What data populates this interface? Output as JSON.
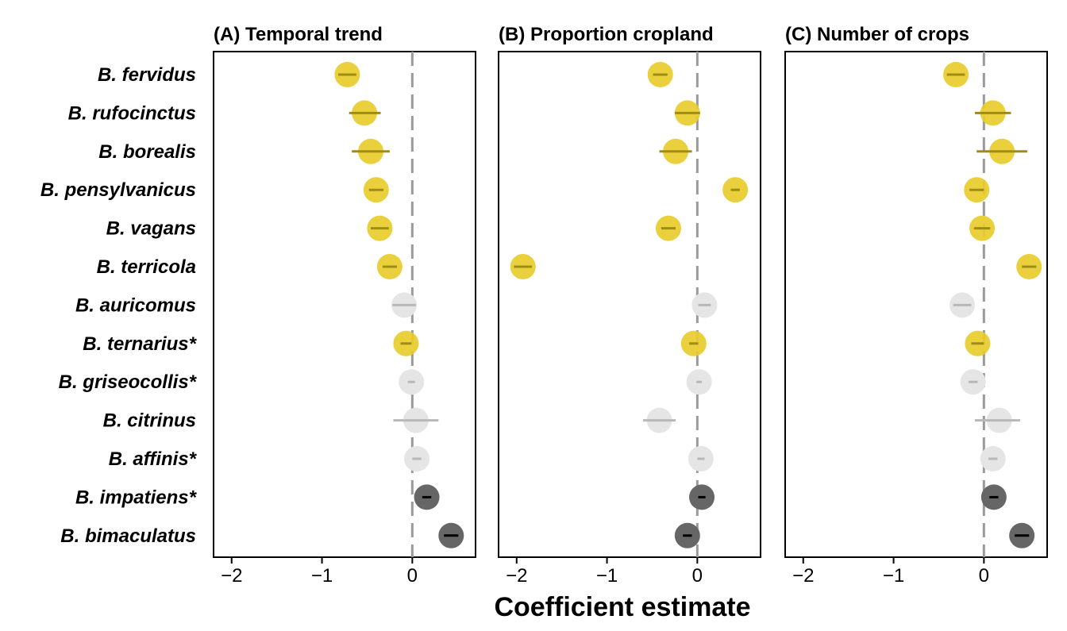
{
  "chart_data": {
    "type": "scatter",
    "xlabel": "Coefficient estimate",
    "xlim": [
      -2.2,
      0.7
    ],
    "xticks": [
      -2,
      -1,
      0
    ],
    "tick_labels": [
      "−2",
      "−1",
      "0"
    ],
    "reference_line": 0,
    "colors": {
      "significant_negative": "#e8cc2c",
      "not_significant": "#e5e5e5",
      "significant_positive": "#666666"
    },
    "species": [
      "B. fervidus",
      "B. rufocinctus",
      "B. borealis",
      "B. pensylvanicus",
      "B. vagans",
      "B. terricola",
      "B. auricomus",
      "B. ternarius*",
      "B. griseocollis*",
      "B. citrinus",
      "B. affinis*",
      "B. impatiens*",
      "B. bimaculatus"
    ],
    "panels": [
      {
        "title": "(A) Temporal trend",
        "points": [
          {
            "est": -0.72,
            "lo": -0.82,
            "hi": -0.62,
            "class": "significant_negative"
          },
          {
            "est": -0.53,
            "lo": -0.7,
            "hi": -0.35,
            "class": "significant_negative"
          },
          {
            "est": -0.46,
            "lo": -0.67,
            "hi": -0.25,
            "class": "significant_negative"
          },
          {
            "est": -0.4,
            "lo": -0.48,
            "hi": -0.32,
            "class": "significant_negative"
          },
          {
            "est": -0.36,
            "lo": -0.46,
            "hi": -0.26,
            "class": "significant_negative"
          },
          {
            "est": -0.25,
            "lo": -0.33,
            "hi": -0.17,
            "class": "significant_negative"
          },
          {
            "est": -0.09,
            "lo": -0.22,
            "hi": 0.04,
            "class": "not_significant"
          },
          {
            "est": -0.07,
            "lo": -0.13,
            "hi": -0.01,
            "class": "significant_negative"
          },
          {
            "est": -0.01,
            "lo": -0.05,
            "hi": 0.03,
            "class": "not_significant"
          },
          {
            "est": 0.04,
            "lo": -0.21,
            "hi": 0.29,
            "class": "not_significant"
          },
          {
            "est": 0.05,
            "lo": 0.0,
            "hi": 0.1,
            "class": "not_significant"
          },
          {
            "est": 0.16,
            "lo": 0.11,
            "hi": 0.21,
            "class": "significant_positive"
          },
          {
            "est": 0.43,
            "lo": 0.35,
            "hi": 0.51,
            "class": "significant_positive"
          }
        ]
      },
      {
        "title": "(B) Proportion cropland",
        "points": [
          {
            "est": -0.41,
            "lo": -0.49,
            "hi": -0.33,
            "class": "significant_negative"
          },
          {
            "est": -0.11,
            "lo": -0.25,
            "hi": 0.03,
            "class": "significant_negative"
          },
          {
            "est": -0.24,
            "lo": -0.42,
            "hi": -0.06,
            "class": "significant_negative"
          },
          {
            "est": 0.42,
            "lo": 0.37,
            "hi": 0.47,
            "class": "significant_negative"
          },
          {
            "est": -0.32,
            "lo": -0.4,
            "hi": -0.24,
            "class": "significant_negative"
          },
          {
            "est": -1.93,
            "lo": -2.03,
            "hi": -1.83,
            "class": "significant_negative"
          },
          {
            "est": 0.08,
            "lo": 0.01,
            "hi": 0.15,
            "class": "not_significant"
          },
          {
            "est": -0.04,
            "lo": -0.09,
            "hi": 0.01,
            "class": "significant_negative"
          },
          {
            "est": 0.02,
            "lo": -0.01,
            "hi": 0.05,
            "class": "not_significant"
          },
          {
            "est": -0.42,
            "lo": -0.6,
            "hi": -0.24,
            "class": "not_significant"
          },
          {
            "est": 0.04,
            "lo": 0.0,
            "hi": 0.08,
            "class": "not_significant"
          },
          {
            "est": 0.05,
            "lo": 0.01,
            "hi": 0.09,
            "class": "significant_positive"
          },
          {
            "est": -0.11,
            "lo": -0.16,
            "hi": -0.06,
            "class": "significant_positive"
          }
        ]
      },
      {
        "title": "(C) Number of crops",
        "points": [
          {
            "est": -0.31,
            "lo": -0.41,
            "hi": -0.21,
            "class": "significant_negative"
          },
          {
            "est": 0.1,
            "lo": -0.1,
            "hi": 0.3,
            "class": "significant_negative"
          },
          {
            "est": 0.2,
            "lo": -0.08,
            "hi": 0.48,
            "class": "significant_negative"
          },
          {
            "est": -0.08,
            "lo": -0.16,
            "hi": 0.0,
            "class": "significant_negative"
          },
          {
            "est": -0.02,
            "lo": -0.11,
            "hi": 0.07,
            "class": "significant_negative"
          },
          {
            "est": 0.5,
            "lo": 0.42,
            "hi": 0.58,
            "class": "significant_negative"
          },
          {
            "est": -0.24,
            "lo": -0.34,
            "hi": -0.14,
            "class": "not_significant"
          },
          {
            "est": -0.07,
            "lo": -0.14,
            "hi": 0.0,
            "class": "significant_negative"
          },
          {
            "est": -0.12,
            "lo": -0.17,
            "hi": -0.07,
            "class": "not_significant"
          },
          {
            "est": 0.17,
            "lo": -0.1,
            "hi": 0.4,
            "class": "not_significant"
          },
          {
            "est": 0.1,
            "lo": 0.05,
            "hi": 0.15,
            "class": "not_significant"
          },
          {
            "est": 0.11,
            "lo": 0.06,
            "hi": 0.16,
            "class": "significant_positive"
          },
          {
            "est": 0.42,
            "lo": 0.34,
            "hi": 0.5,
            "class": "significant_positive"
          }
        ]
      }
    ]
  }
}
